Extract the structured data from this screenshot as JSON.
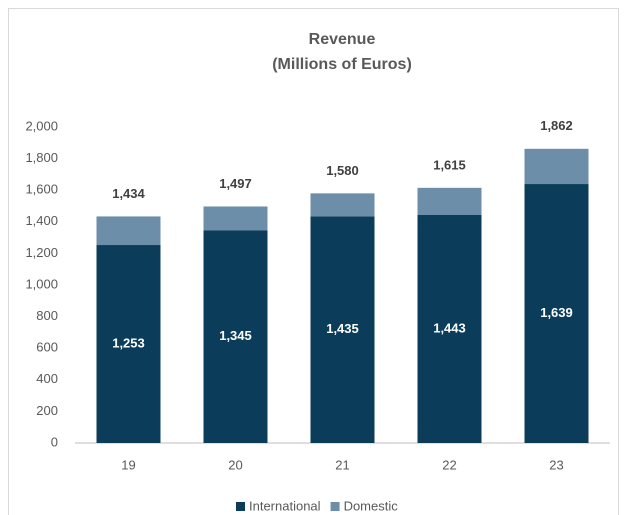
{
  "chart_data": {
    "type": "stacked_bar",
    "title": "Revenue",
    "subtitle": "(Millions of Euros)",
    "categories": [
      "19",
      "20",
      "21",
      "22",
      "23"
    ],
    "series": [
      {
        "name": "International",
        "color": "#0b3d5a",
        "values": [
          1253,
          1345,
          1435,
          1443,
          1639
        ],
        "value_labels": [
          "1,253",
          "1,345",
          "1,435",
          "1,443",
          "1,639"
        ]
      },
      {
        "name": "Domestic",
        "color": "#6d8ea8",
        "values": [
          181,
          152,
          145,
          172,
          223
        ]
      }
    ],
    "totals": {
      "values": [
        1434,
        1497,
        1580,
        1615,
        1862
      ],
      "value_labels": [
        "1,434",
        "1,497",
        "1,580",
        "1,615",
        "1,862"
      ]
    },
    "ylim": [
      0,
      2000
    ],
    "yticks": [
      0,
      200,
      400,
      600,
      800,
      {
        "value": 1000,
        "label": "1,000"
      },
      {
        "value": 1200,
        "label": "1,200"
      },
      {
        "value": 1400,
        "label": "1,400"
      },
      {
        "value": 1600,
        "label": "1,600"
      },
      {
        "value": 1800,
        "label": "1,800"
      },
      {
        "value": 2000,
        "label": "2,000"
      }
    ],
    "grid": false,
    "legend": "bottom"
  }
}
